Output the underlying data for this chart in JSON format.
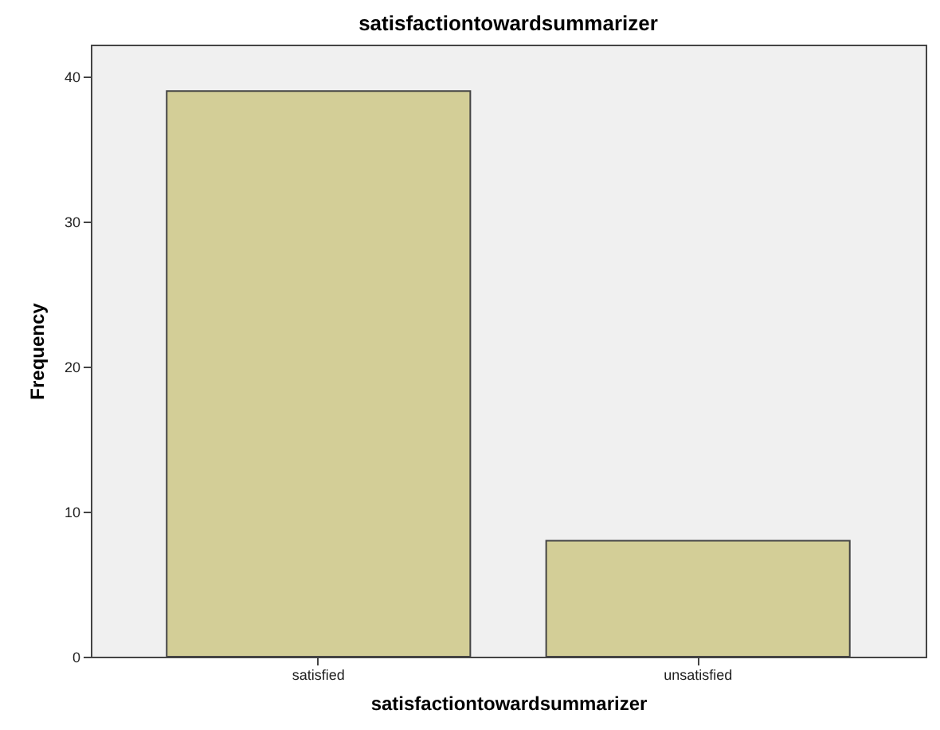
{
  "chart_data": {
    "type": "bar",
    "title": "satisfactiontowardsummarizer",
    "xlabel": "satisfactiontowardsummarizer",
    "ylabel": "Frequency",
    "categories": [
      "satisfied",
      "unsatisfied"
    ],
    "values": [
      39,
      8
    ],
    "color": "#d3ce97",
    "ylim": [
      0,
      42.2
    ],
    "yticks": [
      0,
      10,
      20,
      30,
      40
    ],
    "grid": false
  }
}
